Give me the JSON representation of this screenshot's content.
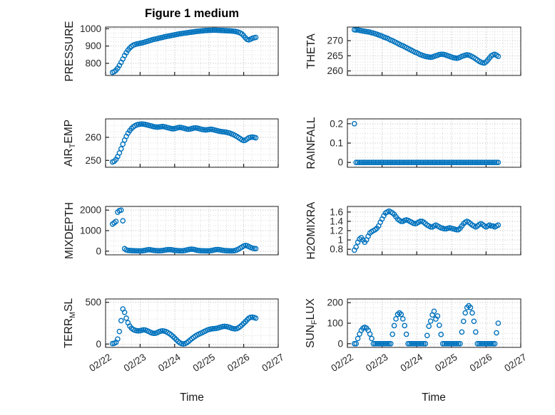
{
  "figure": {
    "title": "Figure 1 medium",
    "xlabel": "Time",
    "marker_color": "#0072BD",
    "grid_minor_color": "#d9d9d9",
    "grid_major_color": "#b8b8b8",
    "axis_color": "#1a1a1a",
    "tick_label_color": "#262626"
  },
  "chart_data": {
    "type": "scatter",
    "marker": "open-circle",
    "xlim": [
      0,
      5
    ],
    "xticks": [
      0,
      1,
      2,
      3,
      4,
      5
    ],
    "xtick_labels": [
      "02/22",
      "02/23",
      "02/24",
      "02/25",
      "02/26",
      "02/27"
    ],
    "x_unit": "days since 02/22",
    "x": [
      0.2,
      0.25,
      0.3,
      0.35,
      0.4,
      0.45,
      0.5,
      0.55,
      0.6,
      0.65,
      0.7,
      0.75,
      0.8,
      0.85,
      0.9,
      0.95,
      1.0,
      1.05,
      1.1,
      1.15,
      1.2,
      1.25,
      1.3,
      1.35,
      1.4,
      1.45,
      1.5,
      1.55,
      1.6,
      1.65,
      1.7,
      1.75,
      1.8,
      1.85,
      1.9,
      1.95,
      2.0,
      2.05,
      2.1,
      2.15,
      2.2,
      2.25,
      2.3,
      2.35,
      2.4,
      2.45,
      2.5,
      2.55,
      2.6,
      2.65,
      2.7,
      2.75,
      2.8,
      2.85,
      2.9,
      2.95,
      3.0,
      3.05,
      3.1,
      3.15,
      3.2,
      3.25,
      3.3,
      3.35,
      3.4,
      3.45,
      3.5,
      3.55,
      3.6,
      3.65,
      3.7,
      3.75,
      3.8,
      3.85,
      3.9,
      3.95,
      4.0,
      4.05,
      4.1,
      4.15,
      4.2,
      4.25,
      4.3,
      4.35
    ],
    "charts": [
      {
        "name": "PRESSURE",
        "ylabel": {
          "pre": "PRESSURE",
          "sub": "",
          "post": ""
        },
        "ylim": [
          730,
          1010
        ],
        "yticks": [
          800,
          900,
          1000
        ],
        "yminor": 25,
        "y": [
          748,
          752,
          760,
          772,
          788,
          806,
          825,
          845,
          862,
          877,
          889,
          898,
          905,
          909,
          912,
          914,
          916,
          918,
          921,
          924,
          927,
          930,
          933,
          936,
          939,
          941,
          943,
          946,
          948,
          950,
          953,
          955,
          957,
          959,
          961,
          963,
          965,
          967,
          969,
          971,
          972,
          974,
          975,
          977,
          978,
          980,
          981,
          982,
          984,
          985,
          986,
          987,
          988,
          989,
          990,
          990,
          991,
          991,
          992,
          992,
          992,
          991,
          991,
          990,
          990,
          989,
          989,
          988,
          988,
          987,
          986,
          985,
          983,
          980,
          976,
          970,
          960,
          948,
          938,
          936,
          940,
          945,
          948,
          950
        ]
      },
      {
        "name": "THETA",
        "ylabel": {
          "pre": "THETA",
          "sub": "",
          "post": ""
        },
        "ylim": [
          258.5,
          274.5
        ],
        "yticks": [
          260,
          265,
          270
        ],
        "yminor": 1,
        "y": [
          273.6,
          273.5,
          273.6,
          273.4,
          273.3,
          273.2,
          273.1,
          273.0,
          272.9,
          272.8,
          272.6,
          272.5,
          272.3,
          272.1,
          271.9,
          271.7,
          271.5,
          271.2,
          271.0,
          270.8,
          270.5,
          270.2,
          270.0,
          269.7,
          269.4,
          269.1,
          268.8,
          268.5,
          268.3,
          268.0,
          267.7,
          267.4,
          267.1,
          266.8,
          266.5,
          266.2,
          266.0,
          265.7,
          265.4,
          265.2,
          265.0,
          264.8,
          264.7,
          264.6,
          264.5,
          264.6,
          264.8,
          265.0,
          265.2,
          265.4,
          265.5,
          265.5,
          265.4,
          265.2,
          265.0,
          264.8,
          264.6,
          264.4,
          264.3,
          264.2,
          264.3,
          264.5,
          264.8,
          265.0,
          265.2,
          265.3,
          265.2,
          265.0,
          264.7,
          264.4,
          264.0,
          263.6,
          263.2,
          262.9,
          262.7,
          262.6,
          263.0,
          263.6,
          264.3,
          265.0,
          265.3,
          265.5,
          265.2,
          264.8
        ]
      },
      {
        "name": "AIR_TEMP",
        "ylabel": {
          "pre": "AIR",
          "sub": "T",
          "post": "EMP"
        },
        "ylim": [
          247,
          268
        ],
        "yticks": [
          250,
          260
        ],
        "yminor": 2.5,
        "y": [
          249.3,
          249.6,
          250.4,
          251.6,
          253.2,
          255.0,
          257.0,
          258.8,
          260.4,
          261.8,
          262.9,
          263.8,
          264.5,
          265.0,
          265.4,
          265.6,
          265.7,
          265.8,
          265.7,
          265.6,
          265.4,
          265.2,
          265.0,
          264.8,
          264.6,
          264.5,
          264.4,
          264.5,
          264.6,
          264.7,
          264.6,
          264.4,
          264.2,
          264.0,
          263.8,
          263.7,
          263.8,
          264.0,
          264.2,
          264.3,
          264.2,
          264.0,
          263.8,
          263.6,
          263.5,
          263.6,
          263.8,
          264.0,
          264.1,
          264.0,
          263.8,
          263.6,
          263.4,
          263.3,
          263.2,
          263.3,
          263.4,
          263.5,
          263.4,
          263.2,
          263.0,
          262.8,
          262.6,
          262.5,
          262.4,
          262.3,
          262.2,
          262.0,
          261.8,
          261.5,
          261.2,
          260.8,
          260.4,
          259.9,
          259.4,
          258.9,
          258.6,
          258.8,
          259.3,
          259.8,
          260.0,
          260.1,
          260.0,
          259.8
        ]
      },
      {
        "name": "RAINFALL",
        "ylabel": {
          "pre": "RAINFALL",
          "sub": "",
          "post": ""
        },
        "ylim": [
          -0.025,
          0.225
        ],
        "yticks": [
          0,
          0.1,
          0.2
        ],
        "yminor": 0.025,
        "y": [
          0.2,
          0,
          0,
          0,
          0,
          0,
          0,
          0,
          0,
          0,
          0,
          0,
          0,
          0,
          0,
          0,
          0,
          0,
          0,
          0,
          0,
          0,
          0,
          0,
          0,
          0,
          0,
          0,
          0,
          0,
          0,
          0,
          0,
          0,
          0,
          0,
          0,
          0,
          0,
          0,
          0,
          0,
          0,
          0,
          0,
          0,
          0,
          0,
          0,
          0,
          0,
          0,
          0,
          0,
          0,
          0,
          0,
          0,
          0,
          0,
          0,
          0,
          0,
          0,
          0,
          0,
          0,
          0,
          0,
          0,
          0,
          0,
          0,
          0,
          0,
          0,
          0,
          0,
          0,
          0,
          0,
          0,
          0,
          0
        ]
      },
      {
        "name": "MIXDEPTH",
        "ylabel": {
          "pre": "MIXDEPTH",
          "sub": "",
          "post": ""
        },
        "ylim": [
          -180,
          2180
        ],
        "yticks": [
          0,
          1000,
          2000
        ],
        "yminor": 250,
        "y": [
          1320,
          1380,
          1450,
          1900,
          1980,
          2000,
          1480,
          120,
          60,
          40,
          30,
          25,
          20,
          18,
          15,
          14,
          12,
          15,
          25,
          40,
          60,
          70,
          65,
          50,
          35,
          25,
          20,
          18,
          20,
          30,
          45,
          60,
          70,
          75,
          70,
          55,
          40,
          30,
          22,
          18,
          15,
          20,
          35,
          55,
          75,
          90,
          95,
          85,
          65,
          45,
          30,
          22,
          18,
          15,
          14,
          12,
          15,
          25,
          40,
          60,
          75,
          80,
          70,
          55,
          40,
          28,
          20,
          16,
          14,
          12,
          15,
          30,
          60,
          100,
          150,
          200,
          250,
          280,
          260,
          220,
          180,
          150,
          130,
          120
        ]
      },
      {
        "name": "H2OMIXRA",
        "ylabel": {
          "pre": "H2OMIXRA",
          "sub": "",
          "post": ""
        },
        "ylim": [
          0.68,
          1.72
        ],
        "yticks": [
          0.8,
          1,
          1.2,
          1.4,
          1.6
        ],
        "yminor": 0.1,
        "y": [
          0.78,
          0.85,
          0.95,
          1.02,
          1.05,
          1.0,
          0.95,
          1.0,
          1.08,
          1.15,
          1.18,
          1.2,
          1.22,
          1.25,
          1.3,
          1.38,
          1.45,
          1.52,
          1.58,
          1.6,
          1.62,
          1.6,
          1.58,
          1.55,
          1.5,
          1.45,
          1.42,
          1.4,
          1.4,
          1.42,
          1.43,
          1.42,
          1.4,
          1.38,
          1.36,
          1.35,
          1.36,
          1.38,
          1.4,
          1.4,
          1.38,
          1.35,
          1.32,
          1.3,
          1.28,
          1.28,
          1.3,
          1.32,
          1.3,
          1.28,
          1.26,
          1.25,
          1.24,
          1.24,
          1.25,
          1.26,
          1.25,
          1.24,
          1.23,
          1.22,
          1.22,
          1.25,
          1.3,
          1.35,
          1.38,
          1.4,
          1.38,
          1.35,
          1.32,
          1.3,
          1.28,
          1.3,
          1.33,
          1.35,
          1.33,
          1.3,
          1.28,
          1.3,
          1.32,
          1.3,
          1.3,
          1.28,
          1.3,
          1.32
        ]
      },
      {
        "name": "TERR_MSL",
        "ylabel": {
          "pre": "TERR",
          "sub": "M",
          "post": "SL"
        },
        "ylim": [
          -40,
          540
        ],
        "yticks": [
          0,
          500
        ],
        "yminor": 100,
        "y": [
          5,
          10,
          20,
          60,
          150,
          280,
          420,
          380,
          310,
          255,
          215,
          190,
          175,
          165,
          160,
          158,
          160,
          165,
          170,
          168,
          160,
          150,
          140,
          132,
          128,
          130,
          138,
          148,
          155,
          158,
          155,
          148,
          138,
          125,
          110,
          92,
          72,
          52,
          32,
          15,
          5,
          2,
          5,
          15,
          30,
          48,
          65,
          80,
          95,
          108,
          118,
          128,
          138,
          148,
          158,
          168,
          175,
          180,
          183,
          185,
          188,
          192,
          198,
          205,
          210,
          212,
          210,
          205,
          198,
          190,
          185,
          182,
          185,
          195,
          210,
          228,
          248,
          268,
          290,
          310,
          320,
          322,
          318,
          310
        ]
      },
      {
        "name": "SUN_FLUX",
        "ylabel": {
          "pre": "SUN",
          "sub": "F",
          "post": "LUX"
        },
        "ylim": [
          -18,
          218
        ],
        "yticks": [
          0,
          100,
          200
        ],
        "yminor": 25,
        "y": [
          0,
          0,
          25,
          47,
          65,
          76,
          80,
          76,
          65,
          47,
          25,
          0,
          0,
          0,
          0,
          0,
          0,
          0,
          0,
          0,
          0,
          0,
          46,
          88,
          121,
          143,
          150,
          143,
          121,
          88,
          46,
          0,
          0,
          0,
          0,
          0,
          0,
          0,
          0,
          0,
          0,
          0,
          40,
          85,
          110,
          140,
          158,
          120,
          135,
          90,
          45,
          0,
          0,
          0,
          0,
          0,
          0,
          0,
          0,
          0,
          0,
          0,
          57,
          109,
          150,
          176,
          185,
          176,
          150,
          109,
          57,
          0,
          0,
          0,
          0,
          0,
          0,
          0,
          0,
          0,
          0,
          0,
          53,
          100
        ]
      }
    ]
  }
}
